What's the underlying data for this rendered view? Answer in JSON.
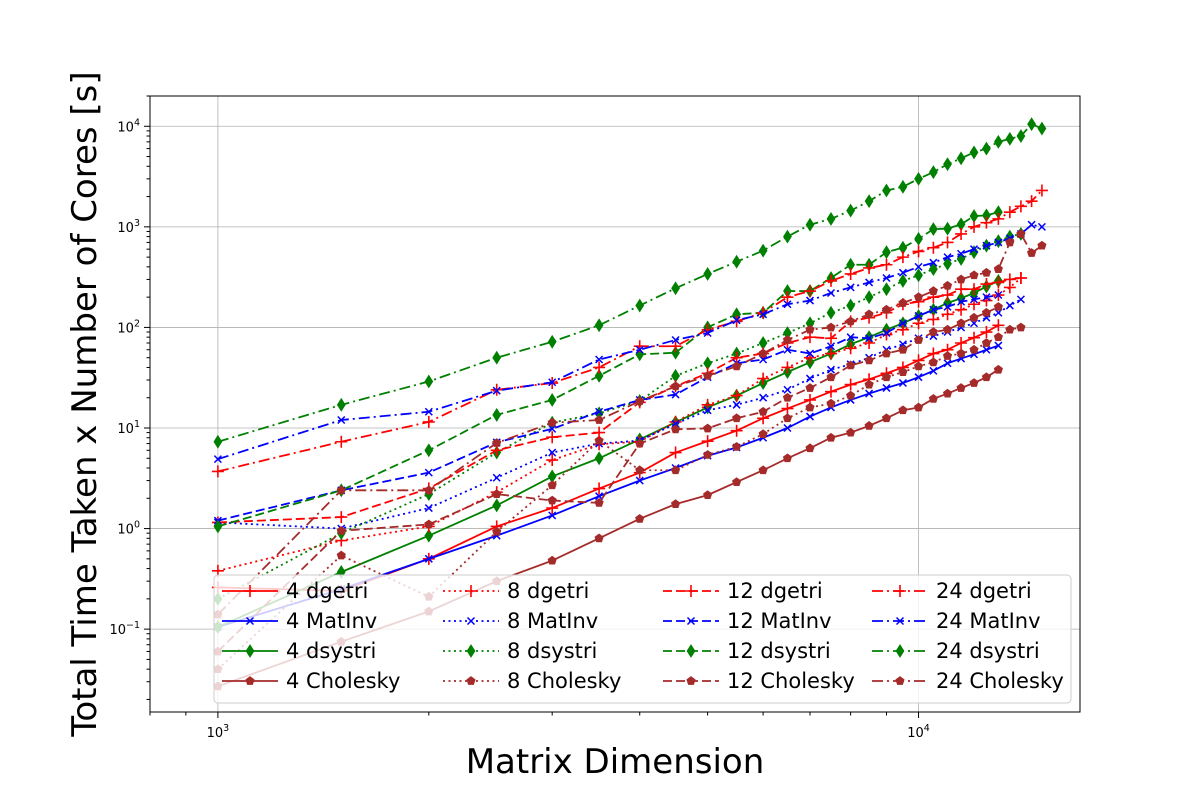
{
  "chart_data": {
    "type": "line",
    "title": "",
    "xlabel": "Matrix Dimension",
    "ylabel": "Total Time Taken x Number of Cores [s]",
    "xscale": "log",
    "yscale": "log",
    "xlim": [
      800,
      17000
    ],
    "ylim": [
      0.015,
      20000
    ],
    "grid": true,
    "xticks": [
      {
        "base": "10",
        "exp": "3",
        "value": 1000
      },
      {
        "base": "10",
        "exp": "4",
        "value": 10000
      }
    ],
    "yticks": [
      {
        "base": "10",
        "exp": "−1",
        "value": 0.1
      },
      {
        "base": "10",
        "exp": "0",
        "value": 1
      },
      {
        "base": "10",
        "exp": "1",
        "value": 10
      },
      {
        "base": "10",
        "exp": "2",
        "value": 100
      },
      {
        "base": "10",
        "exp": "3",
        "value": 1000
      },
      {
        "base": "10",
        "exp": "4",
        "value": 10000
      }
    ],
    "legend_position": "lower-right",
    "legend_ncol": 4,
    "series": [
      {
        "name": "4 dgetri",
        "color": "#ff0000",
        "marker": "plus",
        "dash": "solid",
        "x": [
          1000,
          1500,
          2000,
          2500,
          3000,
          3500,
          4000,
          4500,
          5000,
          5500,
          6000,
          6500,
          7000,
          7500,
          8000,
          8500,
          9000,
          9500,
          10000,
          10500,
          11000,
          11500,
          12000,
          12500,
          13000
        ],
        "y": [
          0.26,
          0.24,
          0.5,
          1.05,
          1.6,
          2.5,
          3.6,
          5.7,
          7.4,
          9.4,
          12.5,
          15.6,
          19,
          23,
          27,
          30.5,
          35,
          40,
          47,
          55,
          60,
          70,
          79,
          90,
          105
        ]
      },
      {
        "name": "4 MatInv",
        "color": "#0000ff",
        "marker": "x",
        "dash": "solid",
        "x": [
          1000,
          1500,
          2000,
          2500,
          3000,
          3500,
          4000,
          4500,
          5000,
          5500,
          6000,
          6500,
          7000,
          7500,
          8000,
          8500,
          9000,
          9500,
          10000,
          10500,
          11000,
          11500,
          12000,
          12500,
          13000
        ],
        "y": [
          0.105,
          0.25,
          0.5,
          0.85,
          1.35,
          2.1,
          3.0,
          4.0,
          5.3,
          6.4,
          8.0,
          10,
          13,
          16,
          19,
          22,
          25,
          28,
          32,
          37,
          44,
          49,
          54,
          60,
          66
        ]
      },
      {
        "name": "4 dsystri",
        "color": "#008000",
        "marker": "diamond",
        "dash": "solid",
        "x": [
          1000,
          1500,
          2000,
          2500,
          3000,
          3500,
          4000,
          4500,
          5000,
          5500,
          6000,
          6500,
          7000,
          7500,
          8000,
          8500,
          9000,
          9500,
          10000,
          10500,
          11000,
          11500,
          12000,
          12500,
          13000
        ],
        "y": [
          0.105,
          0.37,
          0.85,
          1.7,
          3.3,
          5.0,
          7.7,
          11.4,
          16,
          21,
          28,
          36,
          45,
          55,
          68,
          80,
          95,
          110,
          130,
          150,
          175,
          195,
          220,
          255,
          290
        ]
      },
      {
        "name": "4 Cholesky",
        "color": "#a52a2a",
        "marker": "pentagon",
        "dash": "solid",
        "x": [
          1000,
          1500,
          2000,
          2500,
          3000,
          3500,
          4000,
          4500,
          5000,
          5500,
          6000,
          6500,
          7000,
          7500,
          8000,
          8500,
          9000,
          9500,
          10000,
          10500,
          11000,
          11500,
          12000,
          12500,
          13000
        ],
        "y": [
          0.027,
          0.075,
          0.15,
          0.3,
          0.48,
          0.8,
          1.25,
          1.75,
          2.15,
          2.9,
          3.8,
          5.0,
          6.3,
          8.0,
          9.0,
          10.5,
          12.5,
          15,
          16,
          19.5,
          22,
          25,
          28,
          32,
          38
        ]
      },
      {
        "name": "8 dgetri",
        "color": "#ff0000",
        "marker": "plus",
        "dash": "dotted",
        "x": [
          1000,
          1500,
          2000,
          2500,
          3000,
          3500,
          4000,
          4500,
          5000,
          5500,
          6000,
          6500,
          7000,
          7500,
          8000,
          8500,
          9000,
          9500,
          10000,
          10500,
          11000,
          11500,
          12000,
          12500,
          13000,
          13500,
          14000
        ],
        "y": [
          0.38,
          0.76,
          1.05,
          2.3,
          4.8,
          6.9,
          7.3,
          11.5,
          17,
          21,
          31,
          40,
          50,
          55,
          62,
          70,
          85,
          95,
          110,
          120,
          135,
          150,
          170,
          185,
          210,
          250,
          310
        ]
      },
      {
        "name": "8 MatInv",
        "color": "#0000ff",
        "marker": "x",
        "dash": "dotted",
        "x": [
          1000,
          1500,
          2000,
          2500,
          3000,
          3500,
          4000,
          4500,
          5000,
          5500,
          6000,
          6500,
          7000,
          7500,
          8000,
          8500,
          9000,
          9500,
          10000,
          10500,
          11000,
          11500,
          12000,
          12500,
          13000,
          13500,
          14000
        ],
        "y": [
          1.15,
          1.0,
          1.6,
          3.2,
          5.7,
          7.0,
          7.5,
          11,
          15,
          17,
          20,
          24,
          31,
          38,
          43,
          50,
          60,
          68,
          78,
          82,
          90,
          100,
          110,
          125,
          140,
          165,
          190
        ]
      },
      {
        "name": "8 dsystri",
        "color": "#008000",
        "marker": "diamond",
        "dash": "dotted",
        "x": [
          1000,
          1500,
          2000,
          2500,
          3000,
          3500,
          4000,
          4500,
          5000,
          5500,
          6000,
          6500,
          7000,
          7500,
          8000,
          8500,
          9000,
          9500,
          10000,
          10500,
          11000,
          11500,
          12000,
          12500,
          13000,
          13500,
          14000
        ],
        "y": [
          0.2,
          0.9,
          2.2,
          5.7,
          11.3,
          14,
          18.6,
          33,
          44,
          55,
          70,
          88,
          110,
          140,
          165,
          200,
          240,
          290,
          330,
          380,
          430,
          480,
          560,
          650,
          720,
          800,
          850
        ]
      },
      {
        "name": "8 Cholesky",
        "color": "#a52a2a",
        "marker": "pentagon",
        "dash": "dotted",
        "x": [
          1000,
          1500,
          2000,
          2500,
          3000,
          3500,
          4000,
          4500,
          5000,
          5500,
          6000,
          6500,
          7000,
          7500,
          8000,
          8500,
          9000,
          9500,
          10000,
          10500,
          11000,
          11500,
          12000,
          12500,
          13000,
          13500,
          14000
        ],
        "y": [
          0.04,
          0.54,
          0.21,
          0.93,
          2.7,
          7.5,
          3.8,
          3.8,
          5.4,
          6.5,
          8.7,
          12.5,
          16,
          17.5,
          21,
          27,
          32,
          36,
          41,
          45,
          52,
          55,
          60,
          70,
          80,
          95,
          100
        ]
      },
      {
        "name": "12 dgetri",
        "color": "#ff0000",
        "marker": "plus",
        "dash": "dashed",
        "x": [
          1000,
          1500,
          2000,
          2500,
          3000,
          3500,
          4000,
          4500,
          5000,
          5500,
          6000,
          6500,
          7000,
          7500,
          8000,
          8500,
          9000,
          9500,
          10000,
          10500,
          11000,
          11500,
          12000,
          12500,
          13000,
          13500,
          14000
        ],
        "y": [
          1.15,
          1.3,
          2.5,
          6.0,
          8.1,
          9.0,
          18,
          26,
          35,
          50,
          55,
          70,
          80,
          78,
          115,
          125,
          140,
          170,
          180,
          200,
          210,
          240,
          240,
          270,
          280,
          300,
          310
        ]
      },
      {
        "name": "12 MatInv",
        "color": "#0000ff",
        "marker": "x",
        "dash": "dashed",
        "x": [
          1000,
          1500,
          2000,
          2500,
          3000,
          3500,
          4000,
          4500,
          5000,
          5500,
          6000,
          6500,
          7000,
          7500,
          8000,
          8500,
          9000,
          9500,
          10000,
          10500,
          11000,
          11500,
          12000,
          12500,
          13000
        ],
        "y": [
          1.2,
          2.4,
          3.6,
          7.2,
          9.8,
          14.5,
          19,
          21.5,
          32,
          44,
          48,
          60,
          55,
          65,
          80,
          78,
          88,
          110,
          130,
          150,
          160,
          180,
          190,
          200,
          210
        ]
      },
      {
        "name": "12 dsystri",
        "color": "#008000",
        "marker": "diamond",
        "dash": "dashed",
        "x": [
          1000,
          1500,
          2000,
          2500,
          3000,
          3500,
          4000,
          4500,
          5000,
          5500,
          6000,
          6500,
          7000,
          7500,
          8000,
          8500,
          9000,
          9500,
          10000,
          10500,
          11000,
          11500,
          12000,
          12500,
          13000
        ],
        "y": [
          1.05,
          2.4,
          6.0,
          13.5,
          19,
          33,
          54,
          56,
          100,
          135,
          140,
          230,
          230,
          310,
          420,
          420,
          560,
          620,
          760,
          950,
          960,
          1060,
          1280,
          1300,
          1400
        ]
      },
      {
        "name": "12 Cholesky",
        "color": "#a52a2a",
        "marker": "pentagon",
        "dash": "dashed",
        "x": [
          1000,
          1500,
          2000,
          2500,
          3000,
          3500,
          4000,
          4500,
          5000,
          5500,
          6000,
          6500,
          7000,
          7500,
          8000,
          8500,
          9000,
          9500,
          10000,
          10500,
          11000,
          11500,
          12000,
          12500,
          13000
        ],
        "y": [
          0.06,
          0.95,
          1.1,
          2.2,
          1.9,
          1.8,
          7.0,
          9.7,
          9.9,
          12.5,
          14.5,
          20,
          25,
          32,
          42,
          47,
          55,
          60,
          75,
          90,
          95,
          110,
          125,
          140,
          160
        ]
      },
      {
        "name": "24 dgetri",
        "color": "#ff0000",
        "marker": "plus",
        "dash": "dashdot",
        "x": [
          1000,
          1500,
          2000,
          2500,
          3000,
          3500,
          4000,
          4500,
          5000,
          5500,
          6000,
          6500,
          7000,
          7500,
          8000,
          8500,
          9000,
          9500,
          10000,
          10500,
          11000,
          11500,
          12000,
          12500,
          13000,
          13500,
          14000,
          14500,
          15000
        ],
        "y": [
          3.7,
          7.3,
          11.5,
          24,
          28,
          40,
          65,
          65,
          95,
          115,
          140,
          200,
          230,
          290,
          340,
          390,
          420,
          500,
          570,
          620,
          700,
          850,
          1000,
          1100,
          1200,
          1400,
          1600,
          1800,
          2300
        ]
      },
      {
        "name": "24 MatInv",
        "color": "#0000ff",
        "marker": "x",
        "dash": "dashdot",
        "x": [
          1000,
          1500,
          2000,
          2500,
          3000,
          3500,
          4000,
          4500,
          5000,
          5500,
          6000,
          6500,
          7000,
          7500,
          8000,
          8500,
          9000,
          9500,
          10000,
          10500,
          11000,
          11500,
          12000,
          12500,
          13000,
          13500,
          14000,
          14500,
          15000
        ],
        "y": [
          4.9,
          12,
          14.5,
          23.5,
          28.5,
          48,
          60,
          75,
          88,
          118,
          135,
          170,
          185,
          220,
          250,
          280,
          310,
          350,
          400,
          440,
          500,
          540,
          600,
          650,
          700,
          770,
          850,
          1050,
          1000
        ]
      },
      {
        "name": "24 dsystri",
        "color": "#008000",
        "marker": "diamond",
        "dash": "dashdot",
        "x": [
          1000,
          1500,
          2000,
          2500,
          3000,
          3500,
          4000,
          4500,
          5000,
          5500,
          6000,
          6500,
          7000,
          7500,
          8000,
          8500,
          9000,
          9500,
          10000,
          10500,
          11000,
          11500,
          12000,
          12500,
          13000,
          13500,
          14000,
          14500,
          15000
        ],
        "y": [
          7.3,
          17,
          29,
          50,
          72,
          105,
          165,
          245,
          340,
          450,
          580,
          800,
          1050,
          1200,
          1450,
          1800,
          2300,
          2500,
          3000,
          3500,
          4200,
          4800,
          5500,
          6000,
          7000,
          7500,
          8000,
          10500,
          9500
        ]
      },
      {
        "name": "24 Cholesky",
        "color": "#a52a2a",
        "marker": "pentagon",
        "dash": "dashdot",
        "x": [
          1000,
          1500,
          2000,
          2500,
          3000,
          3500,
          4000,
          4500,
          5000,
          5500,
          6000,
          6500,
          7000,
          7500,
          8000,
          8500,
          9000,
          9500,
          10000,
          10500,
          11000,
          11500,
          12000,
          12500,
          13000,
          13500,
          14000,
          14500,
          15000
        ],
        "y": [
          0.14,
          2.4,
          2.4,
          7.1,
          11.3,
          12,
          18.5,
          26,
          33,
          41,
          55,
          75,
          95,
          100,
          115,
          135,
          150,
          175,
          200,
          230,
          260,
          300,
          330,
          350,
          380,
          700,
          850,
          550,
          650
        ]
      }
    ]
  }
}
